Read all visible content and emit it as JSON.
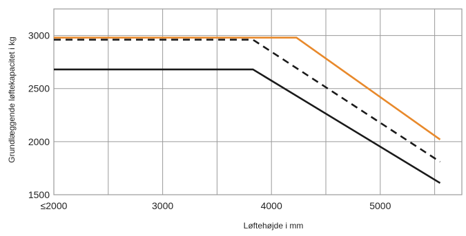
{
  "chart_data": {
    "type": "line",
    "title": "",
    "xlabel": "Løftehøjde i mm",
    "ylabel": "Grundlæggende løftekapacitet i kg",
    "xlim": [
      2000,
      5750
    ],
    "ylim": [
      1500,
      3250
    ],
    "x_ticks": [
      2000,
      3000,
      4000,
      5000
    ],
    "x_tick_labels": [
      "≤2000",
      "3000",
      "4000",
      "5000"
    ],
    "y_ticks": [
      1500,
      2000,
      2500,
      3000
    ],
    "y_tick_labels": [
      "1500",
      "2000",
      "2500",
      "3000"
    ],
    "x_grid": [
      2000,
      2500,
      3000,
      3500,
      4000,
      4500,
      5000,
      5500
    ],
    "y_grid": [
      1500,
      2000,
      2500,
      3000
    ],
    "grid": true,
    "legend": "none",
    "series": [
      {
        "color": "#e8892b",
        "style": "solid",
        "x": [
          2000,
          4230,
          5550
        ],
        "y": [
          2980,
          2980,
          2020
        ]
      },
      {
        "color": "#1a1a1a",
        "style": "dashed",
        "x": [
          2000,
          3830,
          5550
        ],
        "y": [
          2960,
          2960,
          1810
        ]
      },
      {
        "color": "#1a1a1a",
        "style": "solid",
        "x": [
          2000,
          3830,
          5550
        ],
        "y": [
          2680,
          2680,
          1610
        ]
      }
    ]
  }
}
